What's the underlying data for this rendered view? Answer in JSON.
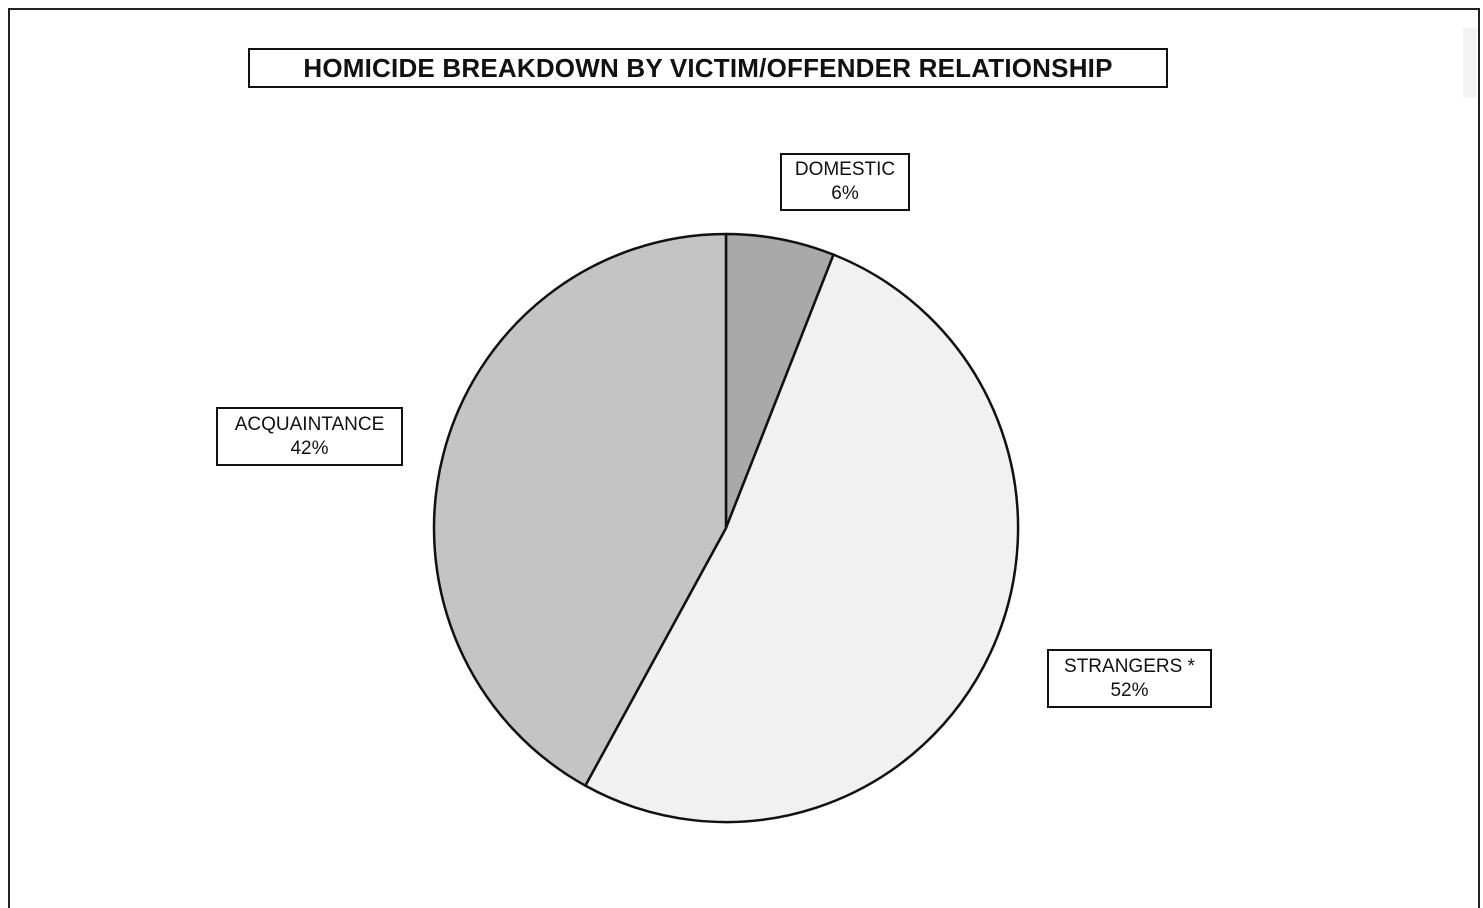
{
  "chart_data": {
    "type": "pie",
    "title": "HOMICIDE BREAKDOWN BY VICTIM/OFFENDER RELATIONSHIP",
    "slices": [
      {
        "label": "DOMESTIC",
        "value": 6,
        "display": "6%",
        "color": "#a9a9a9"
      },
      {
        "label": "STRANGERS *",
        "value": 52,
        "display": "52%",
        "color": "#f1f1f1"
      },
      {
        "label": "ACQUAINTANCE",
        "value": 42,
        "display": "42%",
        "color": "#c4c4c4"
      }
    ],
    "start_angle_deg": 0,
    "direction": "clockwise"
  }
}
